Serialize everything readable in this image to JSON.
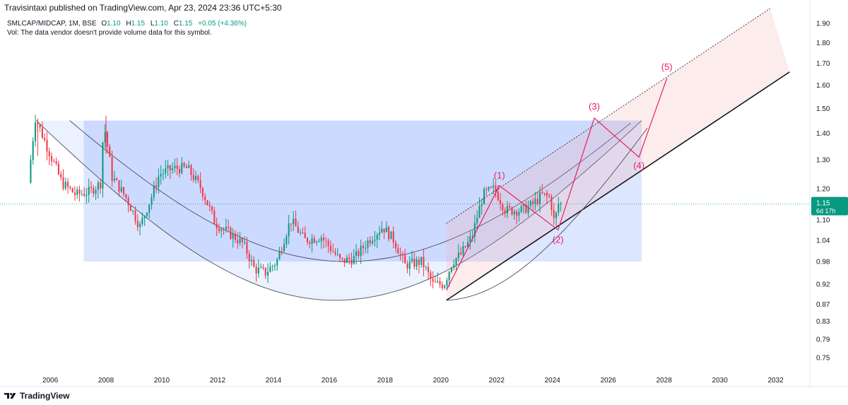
{
  "publisher": "Travisintaxi published on TradingView.com, Apr 23, 2024 23:36 UTC+5:30",
  "legend": {
    "symbol": "SMLCAP/MIDCAP, 1M, BSE",
    "o_label": "O",
    "o_value": "1.10",
    "h_label": "H",
    "h_value": "1.15",
    "l_label": "L",
    "l_value": "1.10",
    "c_label": "C",
    "c_value": "1.15",
    "change": "+0.05 (+4.36%)",
    "volume_note": "Vol: The data vendor doesn't provide volume data for this symbol."
  },
  "price_tag": {
    "value": "1.15",
    "countdown": "6d 17h",
    "color": "#089981"
  },
  "brand": "TradingView",
  "colors": {
    "up": "#089981",
    "down": "#f23645",
    "wave": "#e91e63",
    "blue_fill": "#2962ff",
    "pink_fill": "#f7a8a8"
  },
  "chart_data": {
    "type": "candlestick",
    "scale": "log",
    "interval": "1M",
    "y_ticks": [
      "0.75",
      "0.79",
      "0.83",
      "0.87",
      "0.92",
      "0.98",
      "1.04",
      "1.10",
      "1.20",
      "1.30",
      "1.40",
      "1.50",
      "1.60",
      "1.70",
      "1.80",
      "1.90"
    ],
    "x_ticks": [
      "2006",
      "2008",
      "2010",
      "2012",
      "2014",
      "2016",
      "2018",
      "2020",
      "2022",
      "2024",
      "2026",
      "2028",
      "2030",
      "2032"
    ],
    "ylim": [
      0.72,
      1.98
    ],
    "xlim": [
      2004.2,
      2033.2
    ],
    "last_close": 1.15,
    "swing_path": [
      [
        2005.3,
        1.22
      ],
      [
        2005.55,
        1.46
      ],
      [
        2006.0,
        1.34
      ],
      [
        2006.5,
        1.22
      ],
      [
        2007.0,
        1.18
      ],
      [
        2007.5,
        1.19
      ],
      [
        2007.9,
        1.22
      ],
      [
        2008.0,
        1.44
      ],
      [
        2008.3,
        1.24
      ],
      [
        2008.8,
        1.17
      ],
      [
        2009.3,
        1.08
      ],
      [
        2009.7,
        1.17
      ],
      [
        2010.0,
        1.25
      ],
      [
        2010.5,
        1.27
      ],
      [
        2011.0,
        1.27
      ],
      [
        2011.5,
        1.2
      ],
      [
        2012.0,
        1.09
      ],
      [
        2012.5,
        1.06
      ],
      [
        2013.0,
        1.03
      ],
      [
        2013.4,
        0.96
      ],
      [
        2013.8,
        0.95
      ],
      [
        2014.2,
        0.98
      ],
      [
        2014.7,
        1.1
      ],
      [
        2015.2,
        1.04
      ],
      [
        2015.8,
        1.05
      ],
      [
        2016.5,
        0.98
      ],
      [
        2017.0,
        0.99
      ],
      [
        2017.5,
        1.04
      ],
      [
        2018.0,
        1.08
      ],
      [
        2018.4,
        1.04
      ],
      [
        2018.8,
        0.97
      ],
      [
        2019.4,
        0.98
      ],
      [
        2019.8,
        0.92
      ],
      [
        2020.2,
        0.92
      ],
      [
        2020.5,
        0.98
      ],
      [
        2020.8,
        1.0
      ],
      [
        2021.2,
        1.05
      ],
      [
        2021.6,
        1.18
      ],
      [
        2022.0,
        1.2
      ],
      [
        2022.4,
        1.13
      ],
      [
        2023.0,
        1.13
      ],
      [
        2023.4,
        1.15
      ],
      [
        2023.7,
        1.18
      ],
      [
        2024.0,
        1.17
      ],
      [
        2024.15,
        1.09
      ],
      [
        2024.3,
        1.15
      ]
    ],
    "regions": {
      "cup_rect": {
        "x": [
          2007.2,
          2027.2
        ],
        "y_top": 1.45
      },
      "outer_arc": [
        [
          2005.5,
          1.45
        ],
        [
          2016.2,
          0.88
        ],
        [
          2027.2,
          1.45
        ]
      ],
      "inner_arc": [
        [
          2006.7,
          1.45
        ],
        [
          2016.6,
          0.98
        ],
        [
          2026.8,
          1.44
        ]
      ]
    },
    "channel": {
      "lower": [
        [
          2020.2,
          0.88
        ],
        [
          2032.5,
          1.66
        ]
      ],
      "upper": [
        [
          2020.2,
          1.09
        ],
        [
          2031.8,
          1.98
        ]
      ],
      "arc": [
        [
          2020.2,
          0.88
        ],
        [
          2024.3,
          1.06
        ],
        [
          2027.4,
          1.42
        ]
      ]
    },
    "elliott_waves": [
      {
        "label": "(1)",
        "x": 2022.1,
        "y": 1.21
      },
      {
        "label": "(2)",
        "x": 2024.2,
        "y": 1.07
      },
      {
        "label": "(3)",
        "x": 2025.5,
        "y": 1.46
      },
      {
        "label": "(4)",
        "x": 2027.1,
        "y": 1.31
      },
      {
        "label": "(5)",
        "x": 2028.1,
        "y": 1.63
      }
    ]
  }
}
